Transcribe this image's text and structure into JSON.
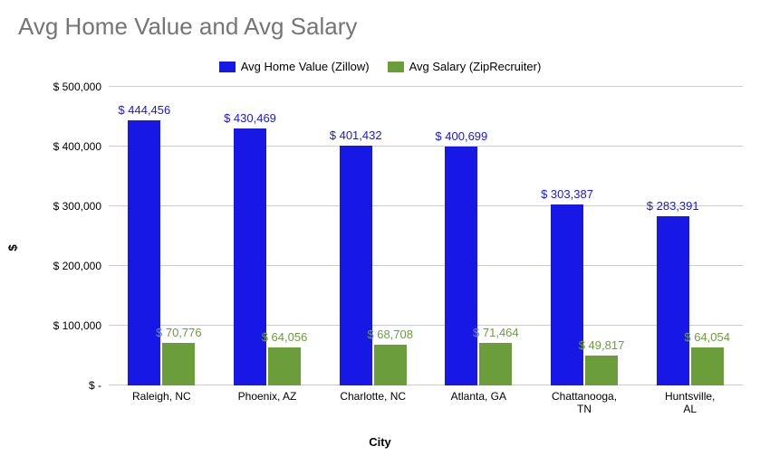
{
  "chart": {
    "type": "bar",
    "title": "Avg Home Value and Avg Salary",
    "title_color": "#757575",
    "title_fontsize": 26,
    "background_color": "#ffffff",
    "grid_color": "#cccccc",
    "y_axis": {
      "title": "$",
      "min": 0,
      "max": 500000,
      "tick_step": 100000,
      "ticks": [
        "$ -",
        "$ 100,000",
        "$ 200,000",
        "$ 300,000",
        "$ 400,000",
        "$ 500,000"
      ]
    },
    "x_axis": {
      "title": "City"
    },
    "series": [
      {
        "name": "Avg Home Value (Zillow)",
        "color": "#1717e6",
        "label_color": "#1717e6"
      },
      {
        "name": "Avg Salary (ZipRecruiter)",
        "color": "#6b9e3b",
        "label_color": "#6b9e3b"
      }
    ],
    "categories": [
      {
        "label": "Raleigh, NC",
        "home_value": 444456,
        "home_value_label": "$ 444,456",
        "salary": 70776,
        "salary_label": "$ 70,776"
      },
      {
        "label": "Phoenix, AZ",
        "home_value": 430469,
        "home_value_label": "$ 430,469",
        "salary": 64056,
        "salary_label": "$ 64,056"
      },
      {
        "label": "Charlotte, NC",
        "home_value": 401432,
        "home_value_label": "$ 401,432",
        "salary": 68708,
        "salary_label": "$ 68,708"
      },
      {
        "label": "Atlanta, GA",
        "home_value": 400699,
        "home_value_label": "$ 400,699",
        "salary": 71464,
        "salary_label": "$ 71,464"
      },
      {
        "label": "Chattanooga, TN",
        "home_value": 303387,
        "home_value_label": "$ 303,387",
        "salary": 49817,
        "salary_label": "$ 49,817"
      },
      {
        "label": "Huntsville, AL",
        "home_value": 283391,
        "home_value_label": "$ 283,391",
        "salary": 64054,
        "salary_label": "$ 64,054"
      }
    ]
  }
}
